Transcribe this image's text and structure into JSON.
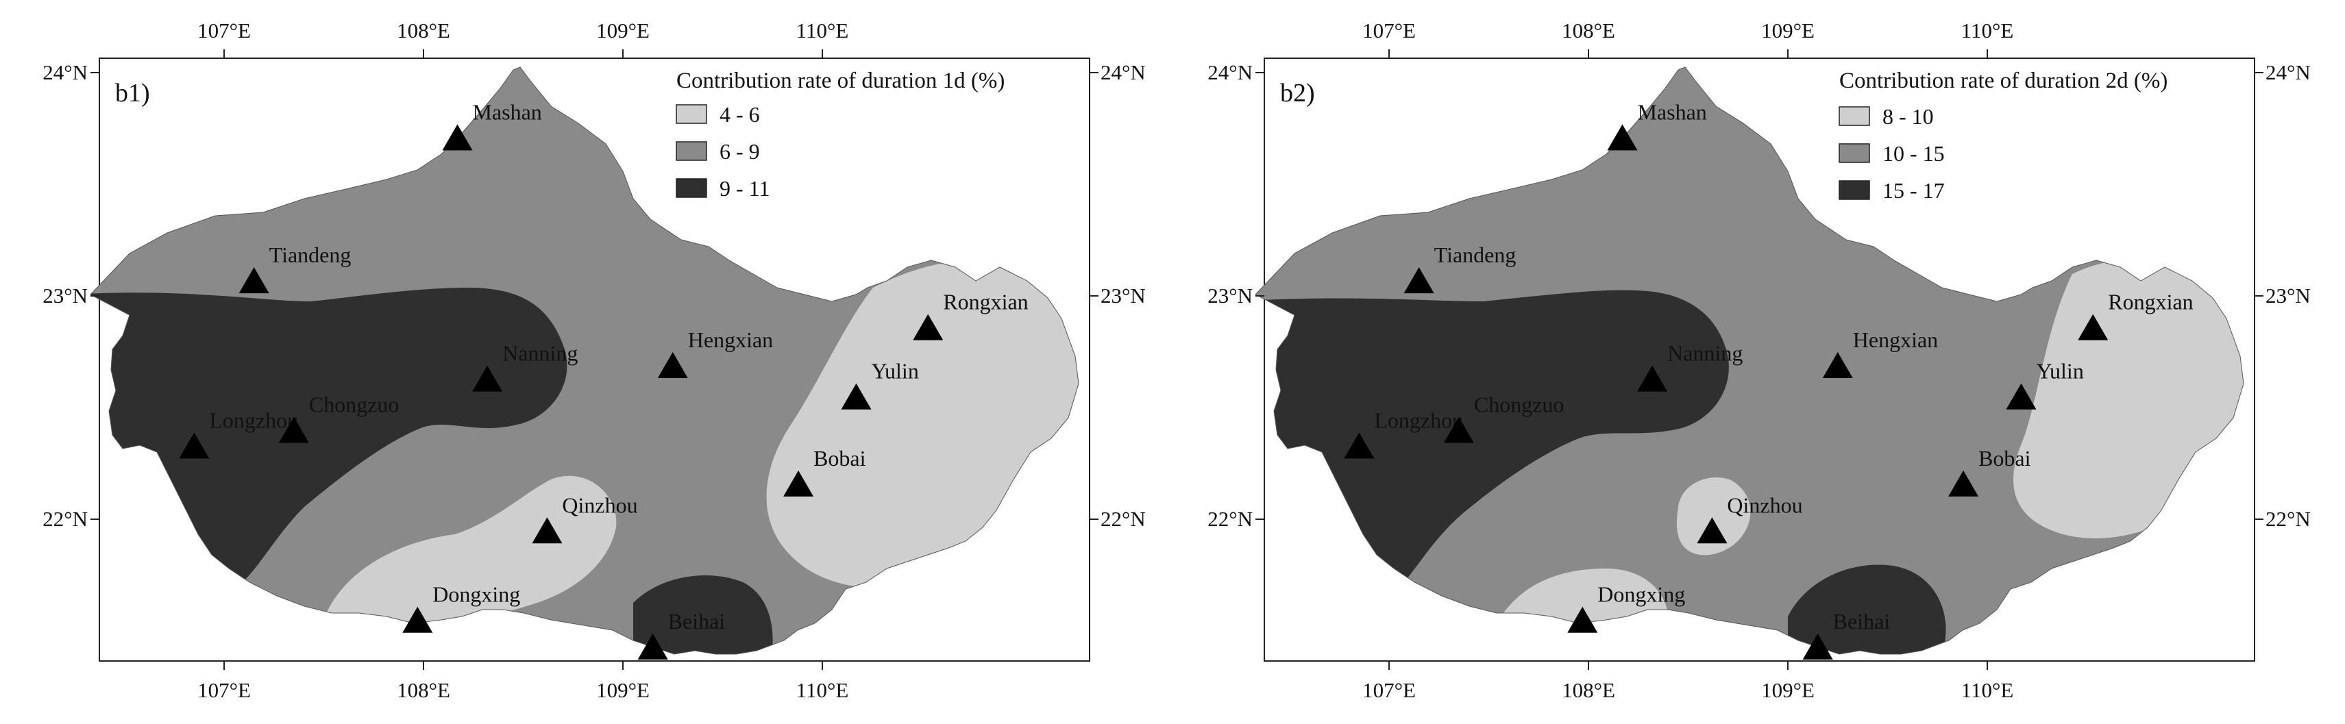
{
  "colors": {
    "light": "#cfcfcf",
    "mid": "#8a8a8a",
    "dark": "#2f2f2f",
    "frame": "#222222",
    "station": "#000000"
  },
  "axes": {
    "x_ticks": [
      "107°E",
      "108°E",
      "109°E",
      "110°E"
    ],
    "y_ticks": [
      "24°N",
      "23°N",
      "22°N"
    ]
  },
  "panels": [
    {
      "tag": "b1)",
      "legend_title": "Contribution rate of duration 1d (%)",
      "legend": [
        {
          "label": "4 - 6",
          "class": "light"
        },
        {
          "label": "6 - 9",
          "class": "mid"
        },
        {
          "label": "9 - 11",
          "class": "dark"
        }
      ]
    },
    {
      "tag": "b2)",
      "legend_title": "Contribution rate of duration 2d (%)",
      "legend": [
        {
          "label": "8 - 10",
          "class": "light"
        },
        {
          "label": "10 - 15",
          "class": "mid"
        },
        {
          "label": "15 - 17",
          "class": "dark"
        }
      ]
    }
  ],
  "stations": [
    {
      "name": "Mashan",
      "lon": 108.17,
      "lat": 23.71
    },
    {
      "name": "Tiandeng",
      "lon": 107.15,
      "lat": 23.07
    },
    {
      "name": "Nanning",
      "lon": 108.32,
      "lat": 22.63
    },
    {
      "name": "Hengxian",
      "lon": 109.25,
      "lat": 22.69
    },
    {
      "name": "Rongxian",
      "lon": 110.53,
      "lat": 22.86
    },
    {
      "name": "Yulin",
      "lon": 110.17,
      "lat": 22.55
    },
    {
      "name": "Longzhou",
      "lon": 106.85,
      "lat": 22.33
    },
    {
      "name": "Chongzuo",
      "lon": 107.35,
      "lat": 22.4
    },
    {
      "name": "Bobai",
      "lon": 109.88,
      "lat": 22.16
    },
    {
      "name": "Qinzhou",
      "lon": 108.62,
      "lat": 21.95
    },
    {
      "name": "Dongxing",
      "lon": 107.97,
      "lat": 21.55
    },
    {
      "name": "Beihai",
      "lon": 109.15,
      "lat": 21.43
    }
  ]
}
